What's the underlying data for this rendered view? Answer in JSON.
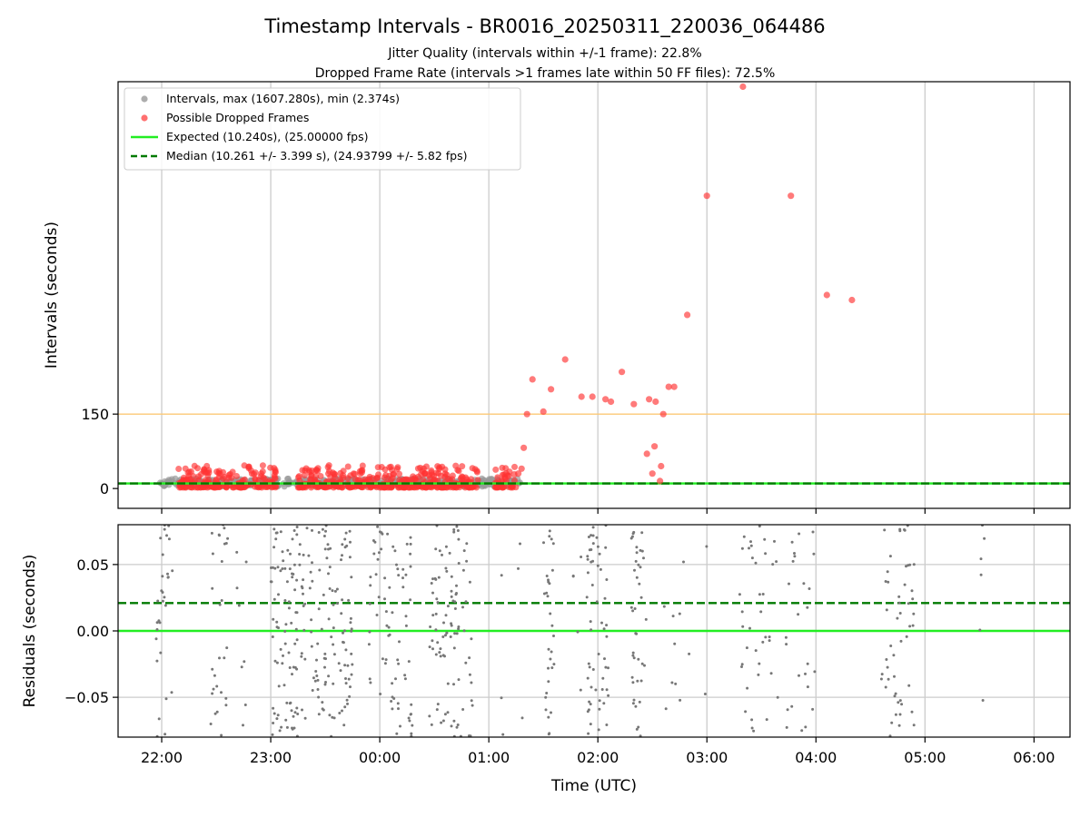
{
  "chart_data": {
    "title": "Timestamp Intervals - BR0016_20250311_220036_064486",
    "subtitles": [
      "Jitter Quality (intervals within +/-1 frame): 22.8%",
      "Dropped Frame Rate (intervals >1 frames late within 50 FF files): 72.5%"
    ],
    "xlabel": "Time (UTC)",
    "x_tick_labels": [
      "22:00",
      "23:00",
      "00:00",
      "01:00",
      "02:00",
      "03:00",
      "04:00",
      "05:00",
      "06:00"
    ],
    "x_range_hours": [
      -0.4,
      8.33
    ],
    "top": {
      "type": "scatter",
      "ylabel": "Intervals (seconds)",
      "ylim": [
        -40,
        820
      ],
      "y_ticks": [
        0,
        150
      ],
      "y_tick_labels": [
        "0",
        "150"
      ],
      "threshold_line": 150,
      "threshold_color": "#fcc976",
      "expected_value": 10.24,
      "expected_color": "#22ee22",
      "median_value": 10.261,
      "median_color": "#007a00",
      "interval_color": "#999999",
      "dropped_color": "#ff3333",
      "legend": [
        "Intervals, max (1607.280s), min (2.374s)",
        "Possible Dropped Frames",
        "Expected (10.240s), (25.00000 fps)",
        "Median (10.261 +/- 3.399 s), (24.93799 +/- 5.82 fps)"
      ],
      "legend_position": "upper-left",
      "grid": "vertical",
      "dropped_points": [
        [
          3.27,
          30
        ],
        [
          3.3,
          40
        ],
        [
          3.32,
          82
        ],
        [
          3.35,
          150
        ],
        [
          3.4,
          220
        ],
        [
          3.5,
          155
        ],
        [
          3.57,
          200
        ],
        [
          3.7,
          260
        ],
        [
          3.85,
          185
        ],
        [
          3.95,
          185
        ],
        [
          4.07,
          180
        ],
        [
          4.12,
          175
        ],
        [
          4.22,
          235
        ],
        [
          4.33,
          170
        ],
        [
          4.45,
          70
        ],
        [
          4.47,
          180
        ],
        [
          4.5,
          30
        ],
        [
          4.52,
          85
        ],
        [
          4.53,
          175
        ],
        [
          4.57,
          15
        ],
        [
          4.58,
          45
        ],
        [
          4.6,
          150
        ],
        [
          4.65,
          205
        ],
        [
          4.7,
          205
        ],
        [
          4.82,
          350
        ],
        [
          5.0,
          590
        ],
        [
          5.33,
          810
        ],
        [
          5.77,
          590
        ],
        [
          6.1,
          390
        ],
        [
          6.33,
          380
        ]
      ]
    },
    "bottom": {
      "type": "scatter",
      "ylabel": "Residuals (seconds)",
      "ylim": [
        -0.08,
        0.08
      ],
      "y_ticks": [
        0.05,
        0.0,
        -0.05
      ],
      "y_tick_labels": [
        "0.05",
        "0.00",
        "−0.05"
      ],
      "expected_residual": 0.0,
      "median_residual": 0.021,
      "point_color": "#777777",
      "grid": "both",
      "clusters": [
        {
          "x_start": -0.05,
          "x_end": 0.1,
          "count": 30
        },
        {
          "x_start": 0.45,
          "x_end": 0.62,
          "count": 28
        },
        {
          "x_start": 0.68,
          "x_end": 0.78,
          "count": 8
        },
        {
          "x_start": 1.0,
          "x_end": 1.25,
          "count": 85
        },
        {
          "x_start": 1.25,
          "x_end": 1.75,
          "count": 120
        },
        {
          "x_start": 1.9,
          "x_end": 2.3,
          "count": 75
        },
        {
          "x_start": 2.45,
          "x_end": 2.85,
          "count": 95
        },
        {
          "x_start": 3.1,
          "x_end": 3.15,
          "count": 3
        },
        {
          "x_start": 3.25,
          "x_end": 3.32,
          "count": 3
        },
        {
          "x_start": 3.5,
          "x_end": 3.6,
          "count": 30
        },
        {
          "x_start": 3.75,
          "x_end": 3.85,
          "count": 5
        },
        {
          "x_start": 3.9,
          "x_end": 4.1,
          "count": 55
        },
        {
          "x_start": 4.3,
          "x_end": 4.45,
          "count": 40
        },
        {
          "x_start": 4.6,
          "x_end": 4.85,
          "count": 10
        },
        {
          "x_start": 4.95,
          "x_end": 5.0,
          "count": 2
        },
        {
          "x_start": 5.3,
          "x_end": 5.65,
          "count": 38
        },
        {
          "x_start": 5.7,
          "x_end": 6.0,
          "count": 25
        },
        {
          "x_start": 6.6,
          "x_end": 6.9,
          "count": 50
        },
        {
          "x_start": 7.5,
          "x_end": 7.55,
          "count": 6
        }
      ]
    }
  }
}
